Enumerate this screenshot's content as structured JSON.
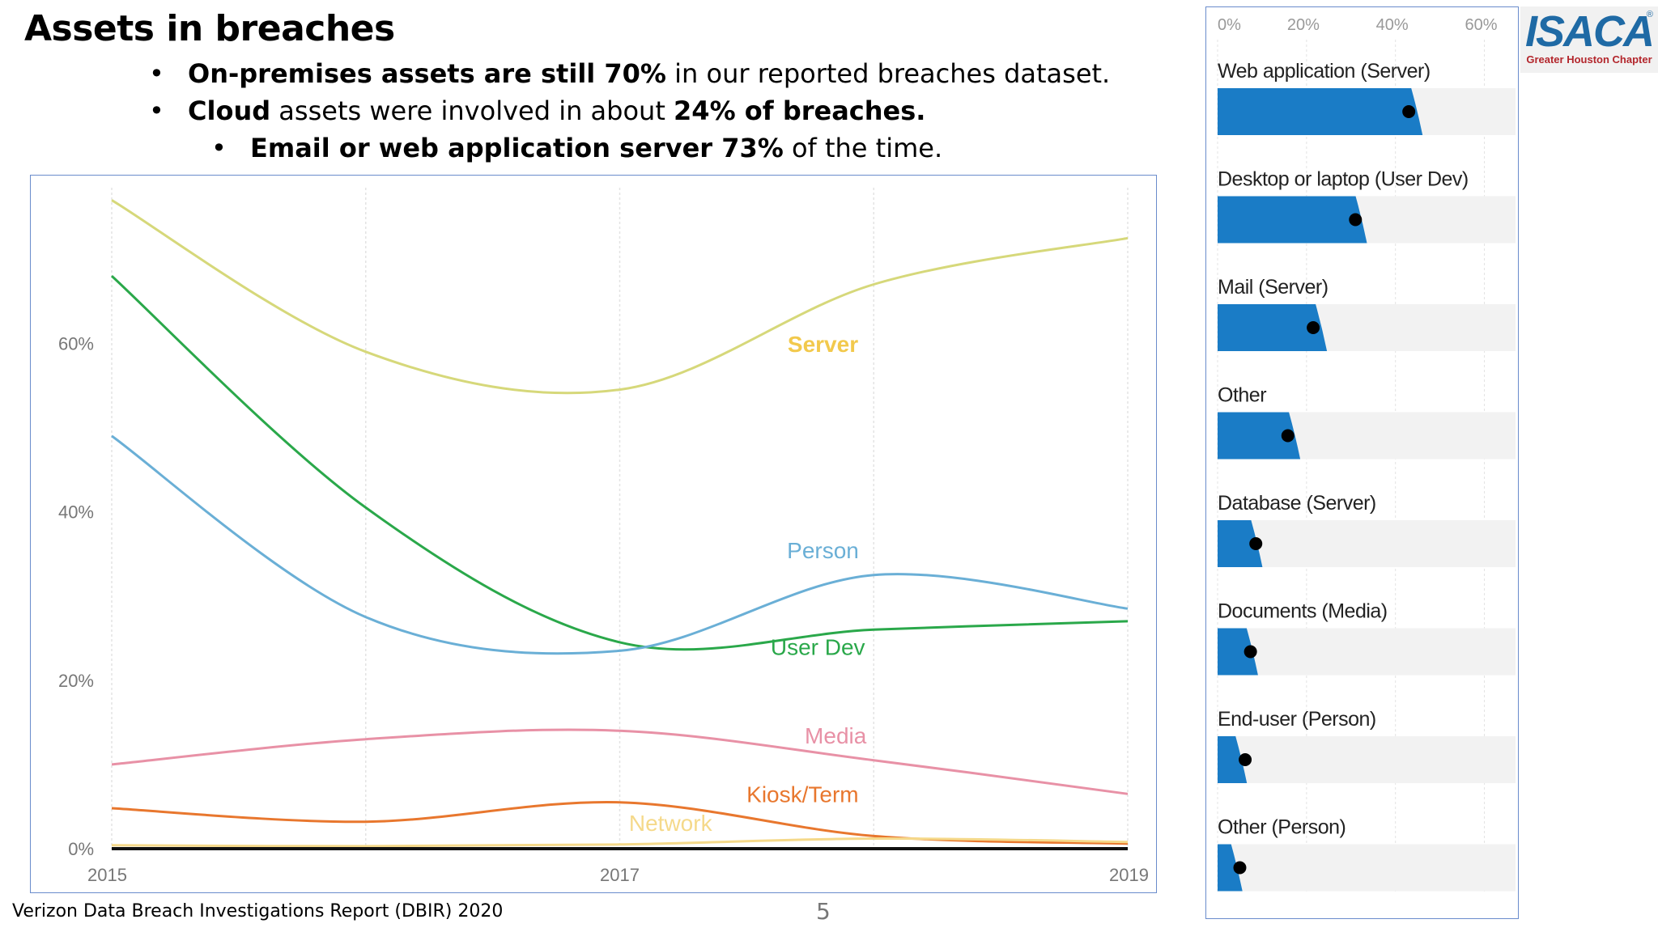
{
  "slide": {
    "title": "Assets in breaches",
    "bullets": [
      {
        "bold1": "On-premises assets are still 70%",
        "text1": " in our reported breaches dataset."
      },
      {
        "bold1": "Cloud",
        "text1": " assets were involved in about ",
        "bold2": "24% of breaches."
      },
      {
        "bold1": "Email or web application server 73%",
        "text1": " of the time."
      }
    ],
    "bullet_symbol": "•",
    "source": "Verizon Data Breach Investigations Report (DBIR) 2020",
    "page_number": "5"
  },
  "logo": {
    "wordmark": "ISACA",
    "registered": "®",
    "chapter": "Greater Houston Chapter",
    "colors": {
      "brand": "#1f6aa5",
      "chapter": "#b3262c"
    }
  },
  "chart_data": [
    {
      "type": "line",
      "title": "",
      "xlabel": "",
      "ylabel": "",
      "x": [
        2015,
        2016,
        2017,
        2018,
        2019
      ],
      "x_tick_labels": [
        "2015",
        "2017",
        "2019"
      ],
      "x_ticks": [
        2015,
        2017,
        2019
      ],
      "xlim": [
        2015,
        2019
      ],
      "y_tick_labels": [
        "0%",
        "20%",
        "40%",
        "60%"
      ],
      "y_ticks": [
        0,
        20,
        40,
        60
      ],
      "ylim": [
        0,
        78
      ],
      "grid": "vertical",
      "series": [
        {
          "name": "Server",
          "color": "#d6d87a",
          "label_color": "#f2c94c",
          "values": [
            77,
            59,
            54.5,
            67,
            72.5
          ]
        },
        {
          "name": "User Dev",
          "color": "#2aa84a",
          "label_color": "#2aa84a",
          "values": [
            68,
            40.5,
            24.5,
            26,
            27
          ]
        },
        {
          "name": "Person",
          "color": "#6aafd6",
          "label_color": "#6aafd6",
          "values": [
            49,
            27.5,
            23.5,
            32.5,
            28.5
          ]
        },
        {
          "name": "Media",
          "color": "#e891a6",
          "label_color": "#e891a6",
          "values": [
            10,
            13,
            14,
            10.5,
            6.5
          ]
        },
        {
          "name": "Kiosk/Term",
          "color": "#e8772e",
          "label_color": "#e8772e",
          "values": [
            4.8,
            3.2,
            5.5,
            1.5,
            0.6
          ]
        },
        {
          "name": "Network",
          "color": "#f5d98a",
          "label_color": "#f5d98a",
          "values": [
            0.4,
            0.3,
            0.5,
            1.2,
            0.8
          ]
        }
      ]
    },
    {
      "type": "bar",
      "orientation": "horizontal",
      "title": "",
      "axis_tick_labels": [
        "0%",
        "20%",
        "40%",
        "60%"
      ],
      "axis_ticks": [
        0,
        20,
        40,
        60
      ],
      "xlim": [
        0,
        67
      ],
      "bar_color": "#1a7cc6",
      "marker_color": "#000000",
      "track_color": "#f2f2f2",
      "categories": [
        "Web application (Server)",
        "Desktop or laptop (User Dev)",
        "Mail (Server)",
        "Other",
        "Database (Server)",
        "Documents (Media)",
        "End-user (Person)",
        "Other (Person)"
      ],
      "values": [
        45,
        32.5,
        23.5,
        17.5,
        9,
        8,
        5.5,
        4.5
      ],
      "markers": [
        43,
        31,
        21.5,
        15.8,
        8.6,
        7.4,
        6.2,
        5
      ]
    }
  ]
}
